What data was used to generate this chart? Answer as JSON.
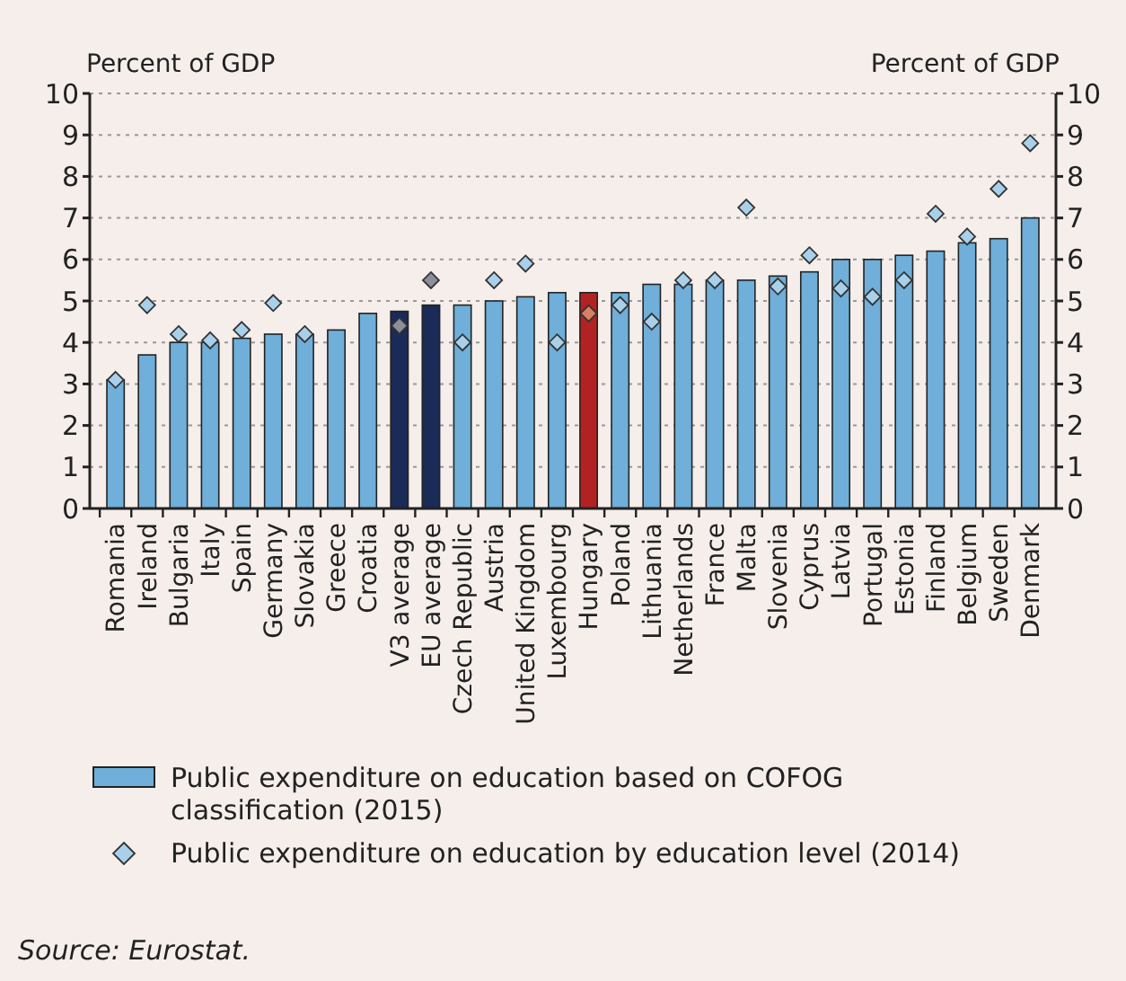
{
  "chart_data": {
    "type": "bar",
    "ylabel": "Percent of GDP",
    "y2label": "Percent of GDP",
    "categories": [
      "Romania",
      "Ireland",
      "Bulgaria",
      "Italy",
      "Spain",
      "Germany",
      "Slovakia",
      "Greece",
      "Croatia",
      "V3 average",
      "EU average",
      "Czech Republic",
      "Austria",
      "United Kingdom",
      "Luxembourg",
      "Hungary",
      "Poland",
      "Lithuania",
      "Netherlands",
      "France",
      "Malta",
      "Slovenia",
      "Cyprus",
      "Latvia",
      "Portugal",
      "Estonia",
      "Finland",
      "Belgium",
      "Sweden",
      "Denmark"
    ],
    "series": [
      {
        "name": "Public expenditure on education based on COFOG classification (2015)",
        "color": "#6fafd9",
        "colors": [
          "#6fafd9",
          "#6fafd9",
          "#6fafd9",
          "#6fafd9",
          "#6fafd9",
          "#6fafd9",
          "#6fafd9",
          "#6fafd9",
          "#6fafd9",
          "#1a2b57",
          "#1a2b57",
          "#6fafd9",
          "#6fafd9",
          "#6fafd9",
          "#6fafd9",
          "#b22222",
          "#6fafd9",
          "#6fafd9",
          "#6fafd9",
          "#6fafd9",
          "#6fafd9",
          "#6fafd9",
          "#6fafd9",
          "#6fafd9",
          "#6fafd9",
          "#6fafd9",
          "#6fafd9",
          "#6fafd9",
          "#6fafd9",
          "#6fafd9"
        ],
        "values": [
          3.1,
          3.7,
          4.0,
          4.0,
          4.1,
          4.2,
          4.2,
          4.3,
          4.7,
          4.75,
          4.9,
          4.9,
          5.0,
          5.1,
          5.2,
          5.2,
          5.2,
          5.4,
          5.4,
          5.5,
          5.5,
          5.6,
          5.7,
          6.0,
          6.0,
          6.1,
          6.2,
          6.4,
          6.5,
          7.0
        ]
      },
      {
        "name": "Public expenditure on education by education level (2014)",
        "type": "scatter",
        "marker": "diamond",
        "color": "#a9d0ea",
        "colors": [
          "#a9d0ea",
          "#a9d0ea",
          "#a9d0ea",
          "#a9d0ea",
          "#a9d0ea",
          "#a9d0ea",
          "#a9d0ea",
          null,
          null,
          "#8a8f9a",
          "#8a8f9a",
          "#a9d0ea",
          "#a9d0ea",
          "#a9d0ea",
          "#a9d0ea",
          "#d98060",
          "#a9d0ea",
          "#a9d0ea",
          "#a9d0ea",
          "#a9d0ea",
          "#a9d0ea",
          "#a9d0ea",
          "#a9d0ea",
          "#a9d0ea",
          "#a9d0ea",
          "#a9d0ea",
          "#a9d0ea",
          "#a9d0ea",
          "#a9d0ea",
          "#a9d0ea"
        ],
        "values": [
          3.1,
          4.9,
          4.2,
          4.05,
          4.3,
          4.95,
          4.2,
          null,
          null,
          4.4,
          5.5,
          4.0,
          5.5,
          5.9,
          4.0,
          4.7,
          4.9,
          4.5,
          5.5,
          5.5,
          7.25,
          5.35,
          6.1,
          5.3,
          5.1,
          5.5,
          7.1,
          6.55,
          7.7,
          8.8
        ]
      }
    ],
    "ylim": [
      0,
      10
    ],
    "yticks": [
      0,
      1,
      2,
      3,
      4,
      5,
      6,
      7,
      8,
      9,
      10
    ],
    "y2lim": [
      0,
      10
    ],
    "y2ticks": [
      0,
      1,
      2,
      3,
      4,
      5,
      6,
      7,
      8,
      9,
      10
    ],
    "grid": "y",
    "legend": "bottom",
    "annotations": [
      "Source: Eurostat."
    ]
  }
}
